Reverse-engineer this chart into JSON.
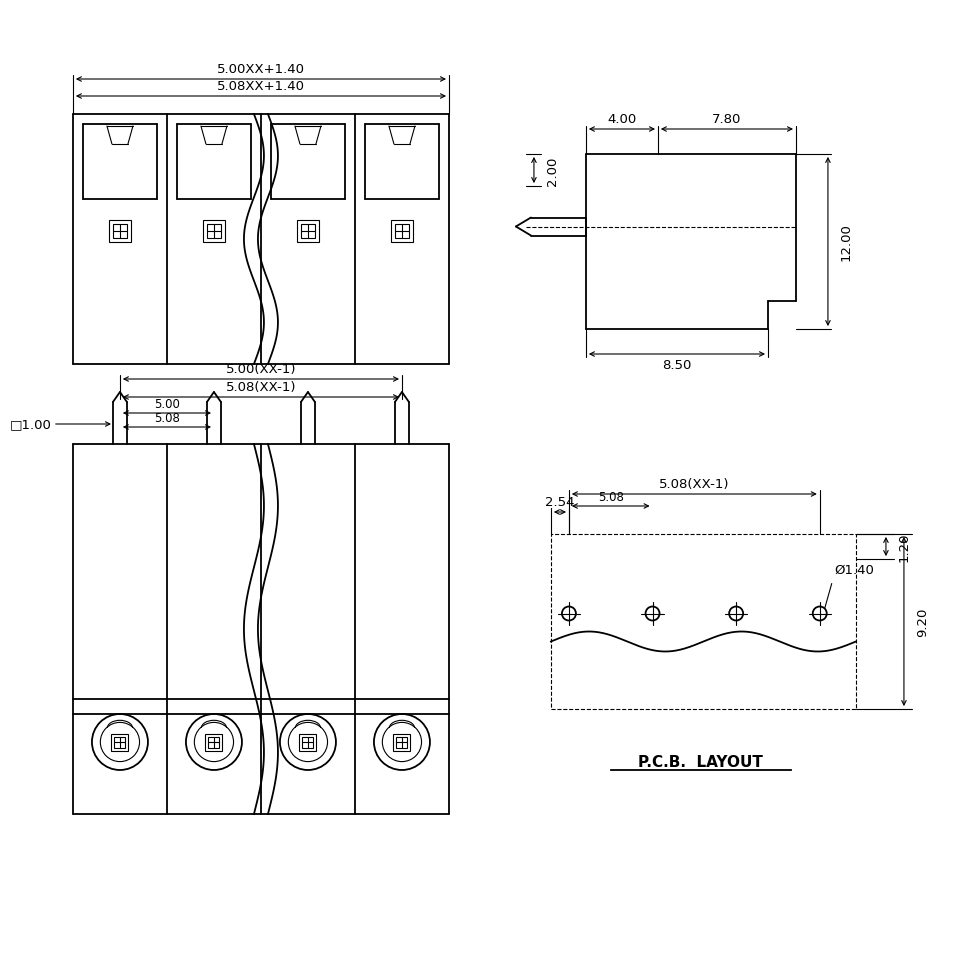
{
  "bg_color": "#ffffff",
  "line_color": "#000000",
  "title_pcb": "P.C.B.  LAYOUT",
  "dims": {
    "tv_w1": "5.00XX+1.40",
    "tv_w2": "5.08XX+1.40",
    "sv_d1": "2.00",
    "sv_d2": "4.00",
    "sv_d3": "7.80",
    "sv_d4": "12.00",
    "sv_d5": "8.50",
    "fv_w1": "5.00(XX-1)",
    "fv_w2": "5.08(XX-1)",
    "fv_w3": "5.00",
    "fv_w4": "5.08",
    "fv_sq": "□1.00",
    "pcb_d1": "2.54",
    "pcb_d2": "5.08(XX-1)",
    "pcb_d3": "5.08",
    "pcb_d4": "Ø1.40",
    "pcb_d5": "1.20",
    "pcb_d6": "9.20"
  },
  "n_terminals": 4
}
